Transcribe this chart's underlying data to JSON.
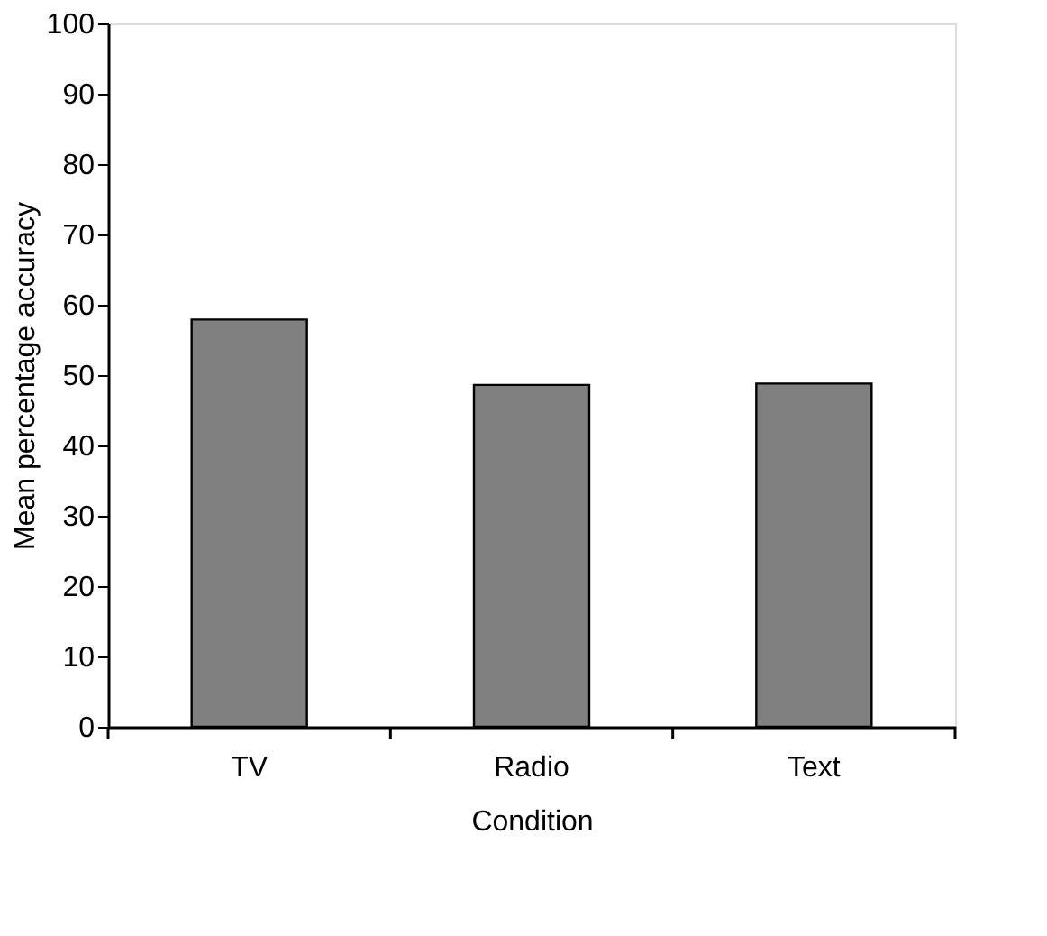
{
  "chart_data": {
    "type": "bar",
    "xlabel": "Condition",
    "ylabel": "Mean percentage accuracy",
    "categories": [
      "TV",
      "Radio",
      "Text"
    ],
    "values": [
      57.9,
      48.6,
      48.8
    ],
    "color": "#808080",
    "ylim": [
      0,
      100
    ],
    "yticks": [
      0,
      10,
      20,
      30,
      40,
      50,
      60,
      70,
      80,
      90,
      100
    ],
    "grid": false
  }
}
